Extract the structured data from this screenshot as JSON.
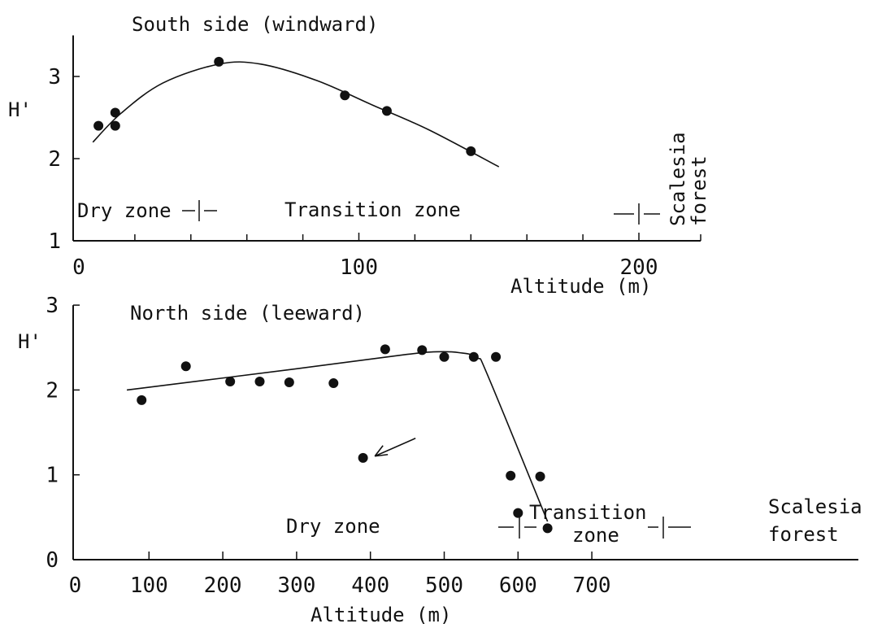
{
  "chart_data": [
    {
      "type": "scatter",
      "title": "South side (windward)",
      "xlabel": "Altitude (m)",
      "ylabel": "H'",
      "xlim": [
        0,
        200
      ],
      "ylim": [
        1,
        3.5
      ],
      "xticks": [
        0,
        100,
        200
      ],
      "yticks": [
        1,
        2,
        3
      ],
      "grid": false,
      "points": [
        {
          "x": 7,
          "y": 2.4
        },
        {
          "x": 13,
          "y": 2.56
        },
        {
          "x": 13,
          "y": 2.4
        },
        {
          "x": 50,
          "y": 3.18
        },
        {
          "x": 95,
          "y": 2.77
        },
        {
          "x": 110,
          "y": 2.58
        },
        {
          "x": 140,
          "y": 2.09
        }
      ],
      "fit_curve": [
        {
          "x": 5,
          "y": 2.2
        },
        {
          "x": 15,
          "y": 2.55
        },
        {
          "x": 30,
          "y": 2.92
        },
        {
          "x": 50,
          "y": 3.15
        },
        {
          "x": 65,
          "y": 3.15
        },
        {
          "x": 85,
          "y": 2.95
        },
        {
          "x": 105,
          "y": 2.65
        },
        {
          "x": 125,
          "y": 2.35
        },
        {
          "x": 150,
          "y": 1.9
        }
      ],
      "zone_labels": {
        "dry": "Dry zone",
        "transition": "Transition zone",
        "forest_line1": "Scalesia",
        "forest_line2": "forest"
      }
    },
    {
      "type": "scatter",
      "title": "North side (leeward)",
      "xlabel": "Altitude (m)",
      "ylabel": "H'",
      "xlim": [
        0,
        760
      ],
      "ylim": [
        0,
        3
      ],
      "xticks": [
        0,
        100,
        200,
        300,
        400,
        500,
        600,
        700
      ],
      "yticks": [
        0,
        1,
        2,
        3
      ],
      "grid": false,
      "points": [
        {
          "x": 90,
          "y": 1.88
        },
        {
          "x": 150,
          "y": 2.28
        },
        {
          "x": 210,
          "y": 2.1
        },
        {
          "x": 250,
          "y": 2.1
        },
        {
          "x": 290,
          "y": 2.09
        },
        {
          "x": 350,
          "y": 2.08
        },
        {
          "x": 390,
          "y": 1.2
        },
        {
          "x": 420,
          "y": 2.48
        },
        {
          "x": 470,
          "y": 2.47
        },
        {
          "x": 500,
          "y": 2.39
        },
        {
          "x": 540,
          "y": 2.39
        },
        {
          "x": 570,
          "y": 2.39
        },
        {
          "x": 590,
          "y": 0.99
        },
        {
          "x": 600,
          "y": 0.55
        },
        {
          "x": 630,
          "y": 0.98
        },
        {
          "x": 640,
          "y": 0.37
        }
      ],
      "fit_curve": [
        {
          "x": 70,
          "y": 2.0
        },
        {
          "x": 300,
          "y": 2.25
        },
        {
          "x": 450,
          "y": 2.42
        },
        {
          "x": 490,
          "y": 2.45
        },
        {
          "x": 520,
          "y": 2.44
        },
        {
          "x": 545,
          "y": 2.38
        },
        {
          "x": 560,
          "y": 2.15
        },
        {
          "x": 640,
          "y": 0.45
        }
      ],
      "annotation": {
        "type": "arrow",
        "target_x": 395,
        "target_y": 1.22
      },
      "zone_labels": {
        "dry": "Dry zone",
        "transition_line1": "Transition",
        "transition_line2": "zone",
        "forest_line1": "Scalesia",
        "forest_line2": "forest"
      }
    }
  ]
}
